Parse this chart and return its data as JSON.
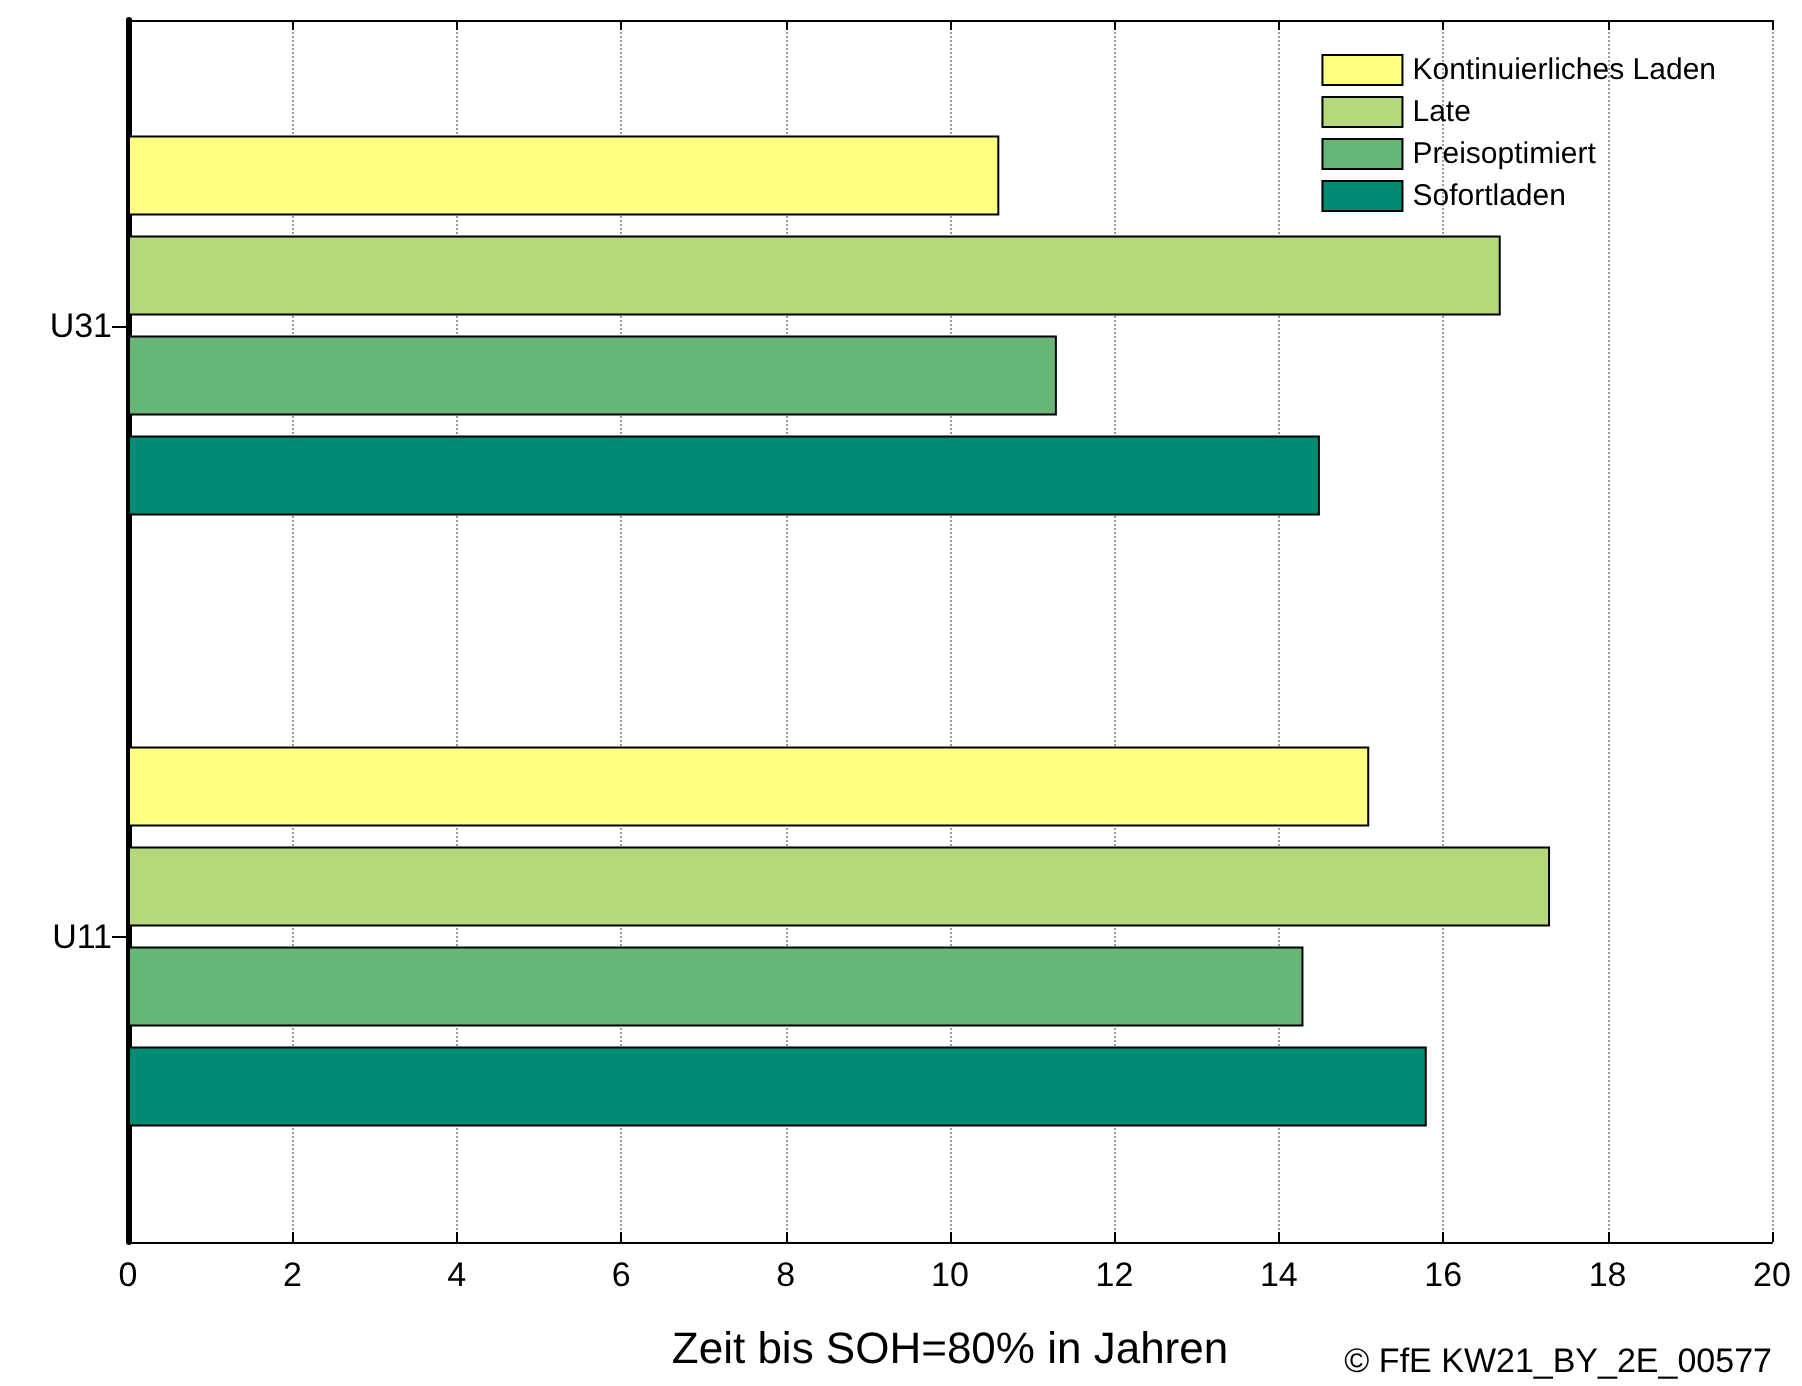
{
  "chart_data": {
    "type": "bar",
    "orientation": "horizontal",
    "xlabel": "Zeit bis SOH=80% in Jahren",
    "categories": [
      "U31",
      "U11"
    ],
    "series": [
      {
        "name": "Kontinuierliches Laden",
        "color": "#ffff80",
        "values": [
          10.6,
          15.1
        ]
      },
      {
        "name": "Late",
        "color": "#b5d97a",
        "values": [
          16.7,
          17.3
        ]
      },
      {
        "name": "Preisoptimiert",
        "color": "#66b777",
        "values": [
          11.3,
          14.3
        ]
      },
      {
        "name": "Sofortladen",
        "color": "#008c72",
        "values": [
          14.5,
          15.8
        ]
      }
    ],
    "xlim": [
      0,
      20
    ],
    "xticks": [
      0,
      2,
      4,
      6,
      8,
      10,
      12,
      14,
      16,
      18,
      20
    ],
    "grid": "x",
    "legend": "top right",
    "annotations": [
      "© FfE KW21_BY_2E_00577"
    ]
  }
}
